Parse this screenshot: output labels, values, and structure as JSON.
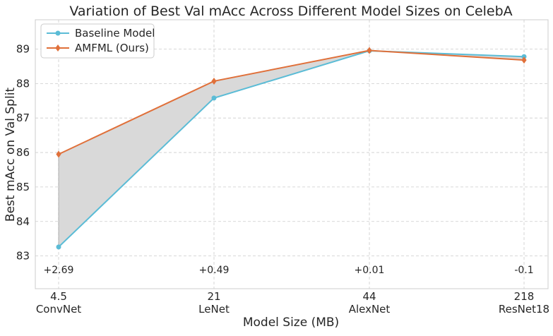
{
  "chart_data": {
    "type": "line",
    "title": "Variation of Best Val mAcc Across Different Model Sizes on CelebA",
    "xlabel": "Model Size (MB)",
    "ylabel": "Best mAcc on Val Split",
    "categories": [
      "4.5",
      "21",
      "44",
      "218"
    ],
    "category_names": [
      "ConvNet",
      "LeNet",
      "AlexNet",
      "ResNet18"
    ],
    "ylim": [
      82.05,
      89.85
    ],
    "yticks": [
      "83",
      "84",
      "85",
      "86",
      "87",
      "88",
      "89"
    ],
    "grid": true,
    "legend_position": "top-left",
    "series": [
      {
        "name": "Baseline Model",
        "values": [
          83.26,
          87.58,
          88.95,
          88.78
        ],
        "color": "#5bbcd6",
        "marker": "circle"
      },
      {
        "name": "AMFML (Ours)",
        "values": [
          85.95,
          88.07,
          88.96,
          88.68
        ],
        "color": "#e0703a",
        "marker": "diamond"
      }
    ],
    "fill_between": {
      "series": [
        0,
        1
      ],
      "color": "#d9d9d9"
    },
    "annotations": [
      "+2.69",
      "+0.49",
      "+0.01",
      "-0.1"
    ]
  }
}
